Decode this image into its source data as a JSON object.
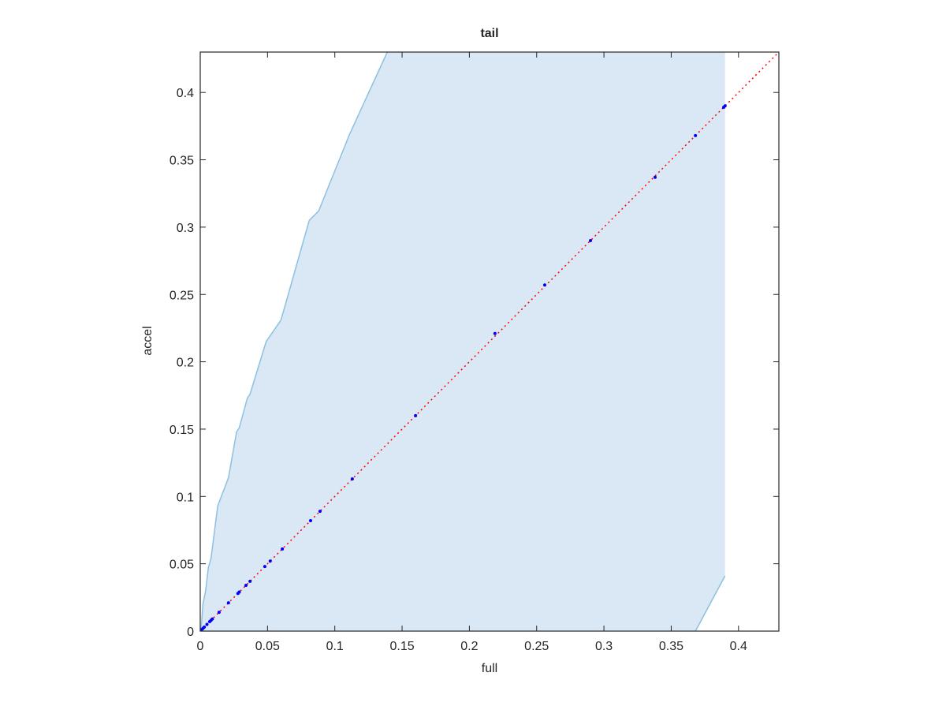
{
  "chart_data": {
    "type": "scatter",
    "title": "tail",
    "xlabel": "full",
    "ylabel": "accel",
    "xlim": [
      0,
      0.43
    ],
    "ylim": [
      0,
      0.43
    ],
    "xticks": [
      0,
      0.05,
      0.1,
      0.15,
      0.2,
      0.25,
      0.3,
      0.35,
      0.4
    ],
    "yticks": [
      0,
      0.05,
      0.1,
      0.15,
      0.2,
      0.25,
      0.3,
      0.35,
      0.4
    ],
    "band": {
      "fill": "#d9e8f4",
      "edge": "#8ec0e1",
      "x_upper": [
        0,
        0.001,
        0.002,
        0.004,
        0.006,
        0.008,
        0.013,
        0.021,
        0.027,
        0.029,
        0.035,
        0.037,
        0.049,
        0.06,
        0.081,
        0.088,
        0.111,
        0.139
      ],
      "upper": [
        0,
        0.006,
        0.02,
        0.03,
        0.047,
        0.054,
        0.093,
        0.114,
        0.148,
        0.151,
        0.173,
        0.176,
        0.215,
        0.231,
        0.305,
        0.312,
        0.369,
        0.43
      ],
      "x_lower": [
        0.39,
        0.368
      ],
      "lower": [
        0.041,
        0
      ]
    },
    "reference": {
      "color": "#ff0000",
      "x": [
        0,
        0.43
      ],
      "values": [
        0,
        0.43
      ]
    },
    "series": [
      {
        "color": "#0000ff",
        "x": [
          0.001,
          0.002,
          0.003,
          0.005,
          0.007,
          0.008,
          0.009,
          0.014,
          0.021,
          0.028,
          0.029,
          0.034,
          0.037,
          0.048,
          0.052,
          0.061,
          0.082,
          0.089,
          0.113,
          0.16,
          0.219,
          0.256,
          0.29,
          0.338,
          0.368,
          0.389,
          0.39
        ],
        "values": [
          0.001,
          0.002,
          0.003,
          0.005,
          0.007,
          0.008,
          0.009,
          0.014,
          0.021,
          0.028,
          0.029,
          0.034,
          0.037,
          0.048,
          0.052,
          0.061,
          0.082,
          0.089,
          0.113,
          0.16,
          0.221,
          0.257,
          0.29,
          0.337,
          0.368,
          0.389,
          0.39
        ]
      }
    ]
  }
}
